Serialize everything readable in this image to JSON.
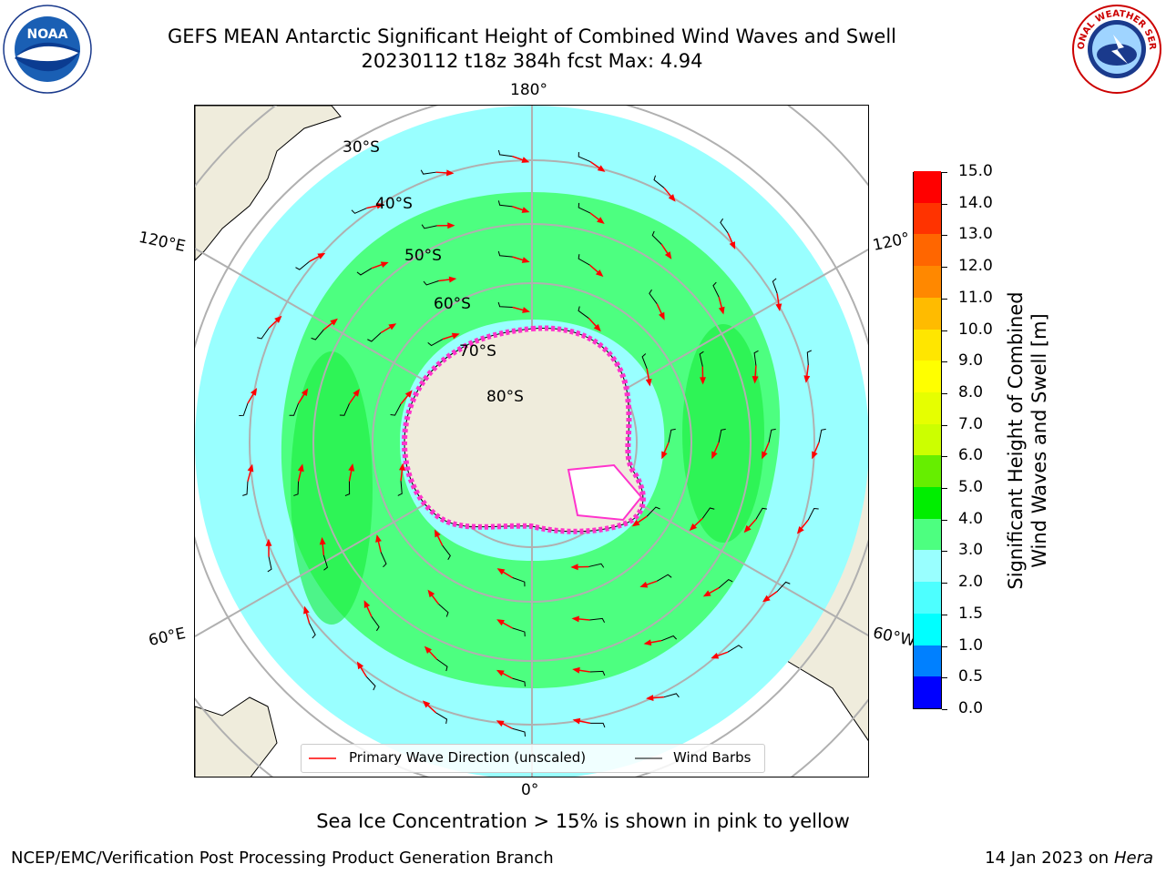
{
  "title": {
    "line1": "GEFS MEAN Antarctic Significant Height of Combined Wind Waves and Swell",
    "line2": "20230112 t18z 384h fcst   Max: 4.94"
  },
  "map": {
    "longitude_labels": {
      "top": "180°",
      "bottom": "0°",
      "left_upper": "120°E",
      "left_lower": "60°E",
      "right_upper": "120°",
      "right_lower": "60°W"
    },
    "latitude_labels": [
      "30°S",
      "40°S",
      "50°S",
      "60°S",
      "70°S",
      "80°S"
    ],
    "colors": {
      "land": "#efecdc",
      "ocean_low": "#99ffff",
      "ocean_mid": "#4dff80",
      "ocean_high": "#1aec3a",
      "ice": "#ff33cc",
      "arrow": "#ff0000"
    }
  },
  "colorbar": {
    "ticks": [
      "0.0",
      "0.5",
      "1.0",
      "1.5",
      "2.0",
      "3.0",
      "4.0",
      "5.0",
      "6.0",
      "7.0",
      "8.0",
      "9.0",
      "10.0",
      "11.0",
      "12.0",
      "13.0",
      "14.0",
      "15.0"
    ],
    "colors": [
      "#0000ff",
      "#0080ff",
      "#00ffff",
      "#4dffff",
      "#99ffff",
      "#4dff80",
      "#00ee00",
      "#66ee00",
      "#ccff00",
      "#e6ff00",
      "#ffff00",
      "#ffe600",
      "#ffbb00",
      "#ff8800",
      "#ff6600",
      "#ff3300",
      "#ff0000"
    ],
    "label_line1": "Significant Height of Combined",
    "label_line2": "Wind Waves and Swell [m]"
  },
  "legend": {
    "wave_label": "Primary Wave Direction (unscaled)",
    "barb_label": "Wind Barbs"
  },
  "footer": {
    "ice_note": "Sea Ice Concentration > 15% is shown in pink to yellow",
    "credit": "NCEP/EMC/Verification Post Processing Product Generation Branch",
    "date_prefix": "14 Jan 2023 on ",
    "date_machine": "Hera"
  },
  "logos": {
    "left_text": "NOAA",
    "right_text": "NATIONAL WEATHER SERVICE"
  }
}
